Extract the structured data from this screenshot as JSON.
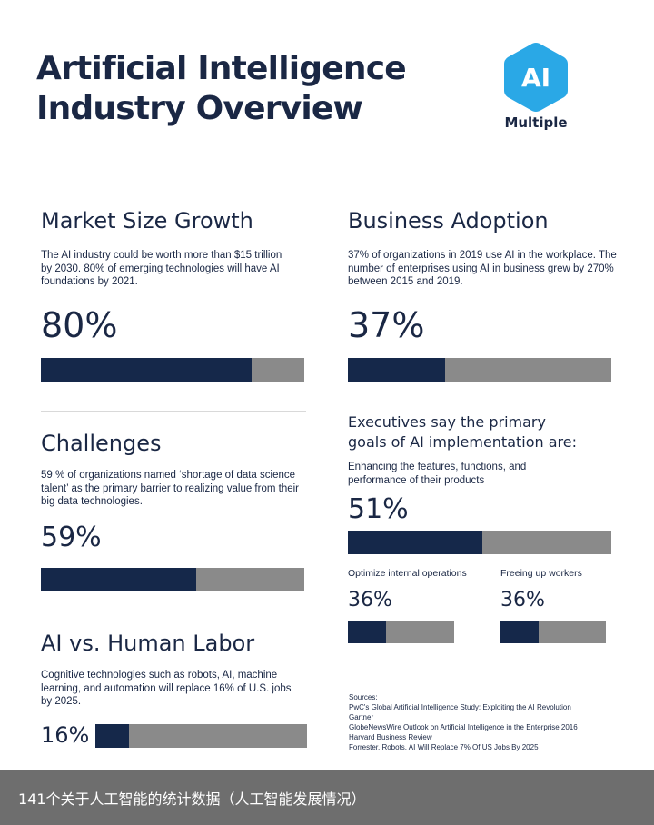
{
  "header": {
    "title_line1": "Artificial Intelligence",
    "title_line2": "Industry Overview",
    "logo_badge": "AI",
    "logo_word": "Multiple",
    "logo_color": "#2aa8e6"
  },
  "market": {
    "title": "Market Size Growth",
    "desc": "The AI industry could be worth more than $15 trillion by 2030. 80% of emerging technologies will have AI foundations by 2021.",
    "pct_label": "80%",
    "value": 80
  },
  "challenges": {
    "title": "Challenges",
    "desc": "59 % of organizations named ‘shortage of data science talent’ as the primary barrier to realizing value from their big data technologies.",
    "pct_label": "59%",
    "value": 59
  },
  "labor": {
    "title": "AI vs. Human Labor",
    "desc": "Cognitive technologies such as robots, AI, machine learning, and automation will replace 16% of U.S. jobs by 2025.",
    "pct_label": "16%",
    "value": 16
  },
  "adoption": {
    "title": "Business Adoption",
    "desc": "37% of organizations in 2019 use AI in the workplace. The number of enterprises using AI in business grew by 270% between 2015 and 2019.",
    "pct_label": "37%",
    "value": 37
  },
  "goals": {
    "title": "Executives say the primary goals of AI implementation are:",
    "main_label": "Enhancing the features, functions, and performance of their products",
    "main_pct": "51%",
    "main_value": 51,
    "sub1_label": "Optimize internal operations",
    "sub1_pct": "36%",
    "sub1_value": 36,
    "sub2_label": "Freeing up workers",
    "sub2_pct": "36%",
    "sub2_value": 36
  },
  "sources": {
    "heading": "Sources:",
    "items": [
      "PwC's Global Artificial Intelligence Study: Exploiting the AI Revolution",
      "Gartner",
      "GlobeNewsWire Outlook on Artificial Intelligence in the Enterprise 2016",
      "Harvard Business Review",
      "Forrester, Robots, AI Will Replace 7% Of US Jobs By 2025"
    ]
  },
  "caption": "141个关于人工智能的统计数据（人工智能发展情况）",
  "colors": {
    "navy": "#15284a",
    "gray_bar": "#8a8a8a",
    "caption_bg": "#6e6e6e"
  }
}
